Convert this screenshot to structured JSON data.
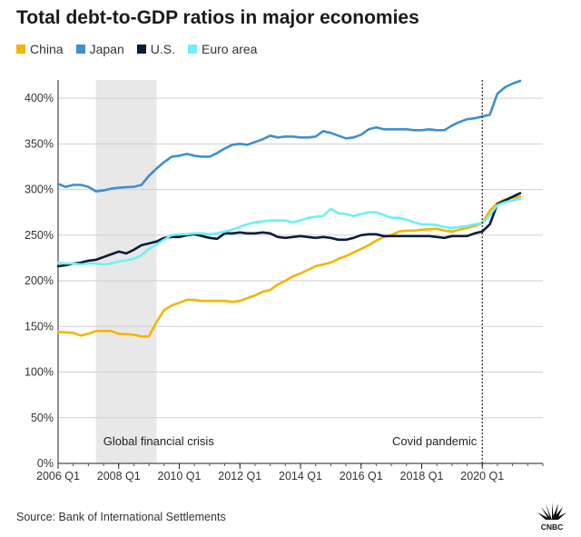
{
  "title": "Total debt-to-GDP ratios in major economies",
  "source": "Source: Bank of International Settlements",
  "logo_text": "CNBC",
  "chart_data": {
    "type": "line",
    "title": "Total debt-to-GDP ratios in major economies",
    "xlabel": "",
    "ylabel": "",
    "xlim": [
      2006.0,
      2022.0
    ],
    "ylim": [
      0,
      420
    ],
    "grid": true,
    "legend_position": "top-left",
    "y_ticks": [
      0,
      50,
      100,
      150,
      200,
      250,
      300,
      350,
      400
    ],
    "y_tick_labels": [
      "0%",
      "50%",
      "100%",
      "150%",
      "200%",
      "250%",
      "300%",
      "350%",
      "400%"
    ],
    "x_ticks": [
      2006.0,
      2008.0,
      2010.0,
      2012.0,
      2014.0,
      2016.0,
      2018.0,
      2020.0
    ],
    "x_tick_labels": [
      "2006 Q1",
      "2008 Q1",
      "2010 Q1",
      "2012 Q1",
      "2014 Q1",
      "2016 Q1",
      "2018 Q1",
      "2020 Q1"
    ],
    "shaded_regions": [
      {
        "label": "Global financial crisis",
        "x_start": 2007.25,
        "x_end": 2009.25,
        "color": "#e8e8e8"
      }
    ],
    "vertical_lines": [
      {
        "label": "Covid pandemic",
        "x": 2020.0,
        "style": "dotted",
        "color": "#222222"
      }
    ],
    "series": [
      {
        "name": "China",
        "color": "#f5b400",
        "points": [
          [
            2006.0,
            144
          ],
          [
            2006.5,
            143
          ],
          [
            2006.75,
            140
          ],
          [
            2007.0,
            142
          ],
          [
            2007.25,
            145
          ],
          [
            2007.75,
            145
          ],
          [
            2008.0,
            142
          ],
          [
            2008.5,
            141
          ],
          [
            2008.75,
            139
          ],
          [
            2009.0,
            139
          ],
          [
            2009.25,
            155
          ],
          [
            2009.5,
            168
          ],
          [
            2009.75,
            173
          ],
          [
            2010.0,
            176
          ],
          [
            2010.25,
            179
          ],
          [
            2010.5,
            179
          ],
          [
            2010.75,
            178
          ],
          [
            2011.0,
            178
          ],
          [
            2011.5,
            178
          ],
          [
            2011.75,
            177
          ],
          [
            2012.0,
            178
          ],
          [
            2012.25,
            181
          ],
          [
            2012.5,
            184
          ],
          [
            2012.75,
            188
          ],
          [
            2013.0,
            190
          ],
          [
            2013.25,
            196
          ],
          [
            2013.5,
            200
          ],
          [
            2013.75,
            205
          ],
          [
            2014.0,
            208
          ],
          [
            2014.25,
            212
          ],
          [
            2014.5,
            216
          ],
          [
            2014.75,
            218
          ],
          [
            2015.0,
            220
          ],
          [
            2015.25,
            224
          ],
          [
            2015.5,
            227
          ],
          [
            2015.75,
            231
          ],
          [
            2016.0,
            235
          ],
          [
            2016.25,
            239
          ],
          [
            2016.5,
            244
          ],
          [
            2016.75,
            248
          ],
          [
            2017.0,
            250
          ],
          [
            2017.25,
            254
          ],
          [
            2017.5,
            255
          ],
          [
            2017.75,
            255
          ],
          [
            2018.0,
            256
          ],
          [
            2018.5,
            257
          ],
          [
            2018.75,
            255
          ],
          [
            2019.0,
            254
          ],
          [
            2019.25,
            256
          ],
          [
            2019.5,
            258
          ],
          [
            2019.75,
            260
          ],
          [
            2020.0,
            263
          ],
          [
            2020.25,
            277
          ],
          [
            2020.5,
            285
          ],
          [
            2020.75,
            289
          ],
          [
            2021.0,
            291
          ],
          [
            2021.25,
            292
          ]
        ]
      },
      {
        "name": "Japan",
        "color": "#3d8fd1",
        "points": [
          [
            2006.0,
            306
          ],
          [
            2006.25,
            303
          ],
          [
            2006.5,
            305
          ],
          [
            2006.75,
            305
          ],
          [
            2007.0,
            303
          ],
          [
            2007.25,
            298
          ],
          [
            2007.5,
            299
          ],
          [
            2007.75,
            301
          ],
          [
            2008.0,
            302
          ],
          [
            2008.5,
            303
          ],
          [
            2008.75,
            305
          ],
          [
            2009.0,
            315
          ],
          [
            2009.25,
            323
          ],
          [
            2009.5,
            330
          ],
          [
            2009.75,
            336
          ],
          [
            2010.0,
            337
          ],
          [
            2010.25,
            339
          ],
          [
            2010.5,
            337
          ],
          [
            2010.75,
            336
          ],
          [
            2011.0,
            336
          ],
          [
            2011.25,
            340
          ],
          [
            2011.5,
            345
          ],
          [
            2011.75,
            349
          ],
          [
            2012.0,
            350
          ],
          [
            2012.25,
            349
          ],
          [
            2012.5,
            352
          ],
          [
            2012.75,
            355
          ],
          [
            2013.0,
            359
          ],
          [
            2013.25,
            357
          ],
          [
            2013.5,
            358
          ],
          [
            2013.75,
            358
          ],
          [
            2014.0,
            357
          ],
          [
            2014.25,
            357
          ],
          [
            2014.5,
            358
          ],
          [
            2014.75,
            364
          ],
          [
            2015.0,
            362
          ],
          [
            2015.25,
            359
          ],
          [
            2015.5,
            356
          ],
          [
            2015.75,
            357
          ],
          [
            2016.0,
            360
          ],
          [
            2016.25,
            366
          ],
          [
            2016.5,
            368
          ],
          [
            2016.75,
            366
          ],
          [
            2017.0,
            366
          ],
          [
            2017.5,
            366
          ],
          [
            2017.75,
            365
          ],
          [
            2018.0,
            365
          ],
          [
            2018.25,
            366
          ],
          [
            2018.5,
            365
          ],
          [
            2018.75,
            365
          ],
          [
            2019.0,
            370
          ],
          [
            2019.25,
            374
          ],
          [
            2019.5,
            377
          ],
          [
            2019.75,
            378
          ],
          [
            2020.0,
            380
          ],
          [
            2020.25,
            382
          ],
          [
            2020.5,
            405
          ],
          [
            2020.75,
            412
          ],
          [
            2021.0,
            416
          ],
          [
            2021.25,
            419
          ]
        ]
      },
      {
        "name": "U.S.",
        "color": "#0b1c3a",
        "points": [
          [
            2006.0,
            216
          ],
          [
            2006.25,
            217
          ],
          [
            2006.5,
            219
          ],
          [
            2006.75,
            220
          ],
          [
            2007.0,
            222
          ],
          [
            2007.25,
            223
          ],
          [
            2007.5,
            226
          ],
          [
            2007.75,
            229
          ],
          [
            2008.0,
            232
          ],
          [
            2008.25,
            230
          ],
          [
            2008.5,
            234
          ],
          [
            2008.75,
            239
          ],
          [
            2009.0,
            241
          ],
          [
            2009.25,
            243
          ],
          [
            2009.5,
            247
          ],
          [
            2009.75,
            248
          ],
          [
            2010.0,
            248
          ],
          [
            2010.25,
            250
          ],
          [
            2010.5,
            251
          ],
          [
            2010.75,
            249
          ],
          [
            2011.0,
            247
          ],
          [
            2011.25,
            246
          ],
          [
            2011.5,
            252
          ],
          [
            2011.75,
            252
          ],
          [
            2012.0,
            253
          ],
          [
            2012.25,
            252
          ],
          [
            2012.5,
            252
          ],
          [
            2012.75,
            253
          ],
          [
            2013.0,
            252
          ],
          [
            2013.25,
            248
          ],
          [
            2013.5,
            247
          ],
          [
            2013.75,
            248
          ],
          [
            2014.0,
            249
          ],
          [
            2014.25,
            248
          ],
          [
            2014.5,
            247
          ],
          [
            2014.75,
            248
          ],
          [
            2015.0,
            247
          ],
          [
            2015.25,
            245
          ],
          [
            2015.5,
            245
          ],
          [
            2015.75,
            247
          ],
          [
            2016.0,
            250
          ],
          [
            2016.25,
            251
          ],
          [
            2016.5,
            251
          ],
          [
            2016.75,
            249
          ],
          [
            2017.0,
            249
          ],
          [
            2017.5,
            249
          ],
          [
            2017.75,
            249
          ],
          [
            2018.0,
            249
          ],
          [
            2018.25,
            249
          ],
          [
            2018.5,
            248
          ],
          [
            2018.75,
            247
          ],
          [
            2019.0,
            249
          ],
          [
            2019.25,
            249
          ],
          [
            2019.5,
            249
          ],
          [
            2019.75,
            252
          ],
          [
            2020.0,
            254
          ],
          [
            2020.25,
            262
          ],
          [
            2020.5,
            284
          ],
          [
            2020.75,
            288
          ],
          [
            2021.0,
            292
          ],
          [
            2021.25,
            296
          ]
        ]
      },
      {
        "name": "Euro area",
        "color": "#6df0f8",
        "points": [
          [
            2006.0,
            220
          ],
          [
            2006.25,
            219
          ],
          [
            2006.5,
            219
          ],
          [
            2006.75,
            218
          ],
          [
            2007.0,
            219
          ],
          [
            2007.25,
            219
          ],
          [
            2007.5,
            218
          ],
          [
            2007.75,
            219
          ],
          [
            2008.0,
            221
          ],
          [
            2008.5,
            224
          ],
          [
            2008.75,
            228
          ],
          [
            2009.0,
            235
          ],
          [
            2009.25,
            240
          ],
          [
            2009.5,
            245
          ],
          [
            2009.75,
            250
          ],
          [
            2010.0,
            251
          ],
          [
            2010.25,
            251
          ],
          [
            2010.5,
            252
          ],
          [
            2010.75,
            252
          ],
          [
            2011.0,
            251
          ],
          [
            2011.25,
            252
          ],
          [
            2011.5,
            254
          ],
          [
            2011.75,
            256
          ],
          [
            2012.0,
            259
          ],
          [
            2012.25,
            262
          ],
          [
            2012.5,
            264
          ],
          [
            2012.75,
            265
          ],
          [
            2013.0,
            266
          ],
          [
            2013.5,
            266
          ],
          [
            2013.75,
            264
          ],
          [
            2014.0,
            266
          ],
          [
            2014.25,
            269
          ],
          [
            2014.5,
            270
          ],
          [
            2014.75,
            271
          ],
          [
            2015.0,
            279
          ],
          [
            2015.25,
            274
          ],
          [
            2015.5,
            273
          ],
          [
            2015.75,
            271
          ],
          [
            2016.0,
            273
          ],
          [
            2016.25,
            275
          ],
          [
            2016.5,
            275
          ],
          [
            2016.75,
            272
          ],
          [
            2017.0,
            269
          ],
          [
            2017.25,
            269
          ],
          [
            2017.5,
            267
          ],
          [
            2017.75,
            264
          ],
          [
            2018.0,
            262
          ],
          [
            2018.25,
            262
          ],
          [
            2018.5,
            261
          ],
          [
            2018.75,
            259
          ],
          [
            2019.0,
            258
          ],
          [
            2019.25,
            259
          ],
          [
            2019.5,
            260
          ],
          [
            2019.75,
            262
          ],
          [
            2020.0,
            263
          ],
          [
            2020.25,
            272
          ],
          [
            2020.5,
            283
          ],
          [
            2020.75,
            286
          ],
          [
            2021.0,
            288
          ],
          [
            2021.25,
            290
          ]
        ]
      }
    ]
  }
}
